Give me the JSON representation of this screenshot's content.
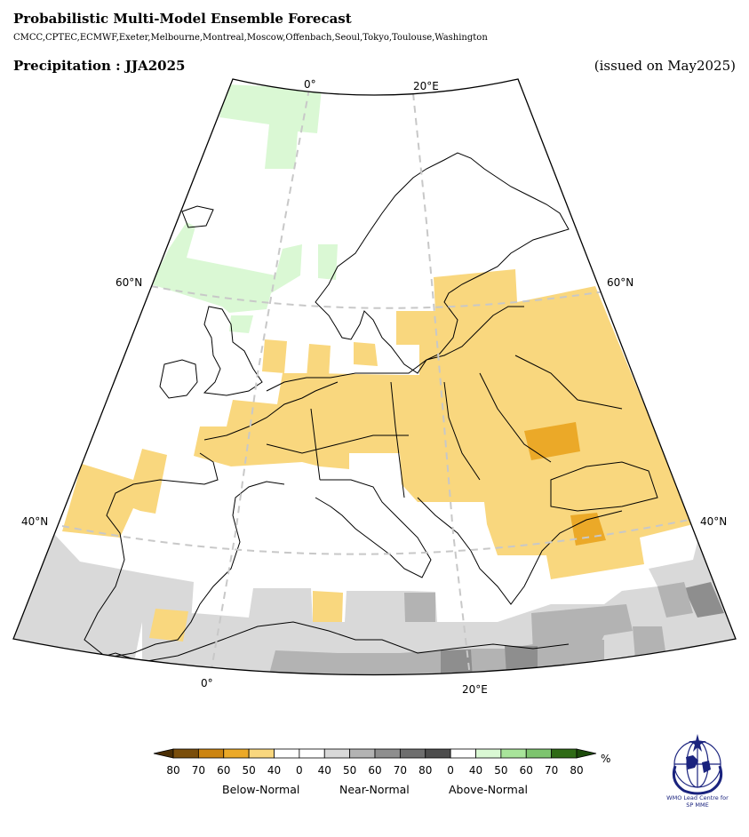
{
  "header": {
    "title": "Probabilistic Multi-Model Ensemble Forecast",
    "models": "CMCC,CPTEC,ECMWF,Exeter,Melbourne,Montreal,Moscow,Offenbach,Seoul,Tokyo,Toulouse,Washington",
    "variable": "Precipitation : JJA2025",
    "issued": "(issued on May2025)"
  },
  "map": {
    "graticule_labels": {
      "top_0": "0°",
      "top_20e": "20°E",
      "left_60n": "60°N",
      "right_60n": "60°N",
      "left_40n": "40°N",
      "right_40n": "40°N",
      "bottom_0": "0°",
      "bottom_20e": "20°E"
    }
  },
  "legend": {
    "ticks": [
      "80",
      "70",
      "60",
      "50",
      "40",
      "0",
      "40",
      "50",
      "60",
      "70",
      "80",
      "0",
      "40",
      "50",
      "60",
      "70",
      "80"
    ],
    "unit": "%",
    "categories": {
      "below": "Below-Normal",
      "near": "Near-Normal",
      "above": "Above-Normal"
    },
    "colors": {
      "below": [
        "#7a4e0b",
        "#cc8410",
        "#eba928",
        "#f9d77e",
        "#ffffff"
      ],
      "near": [
        "#ffffff",
        "#d9d9d9",
        "#b3b3b3",
        "#8e8e8e",
        "#6e6e6e",
        "#4d4d4d"
      ],
      "above": [
        "#ffffff",
        "#daf8d4",
        "#a8e49a",
        "#7dc46e",
        "#2f6b16"
      ]
    }
  },
  "logo": {
    "text_line1": "WMO Lead Centre for",
    "text_line2": "SP MME"
  }
}
